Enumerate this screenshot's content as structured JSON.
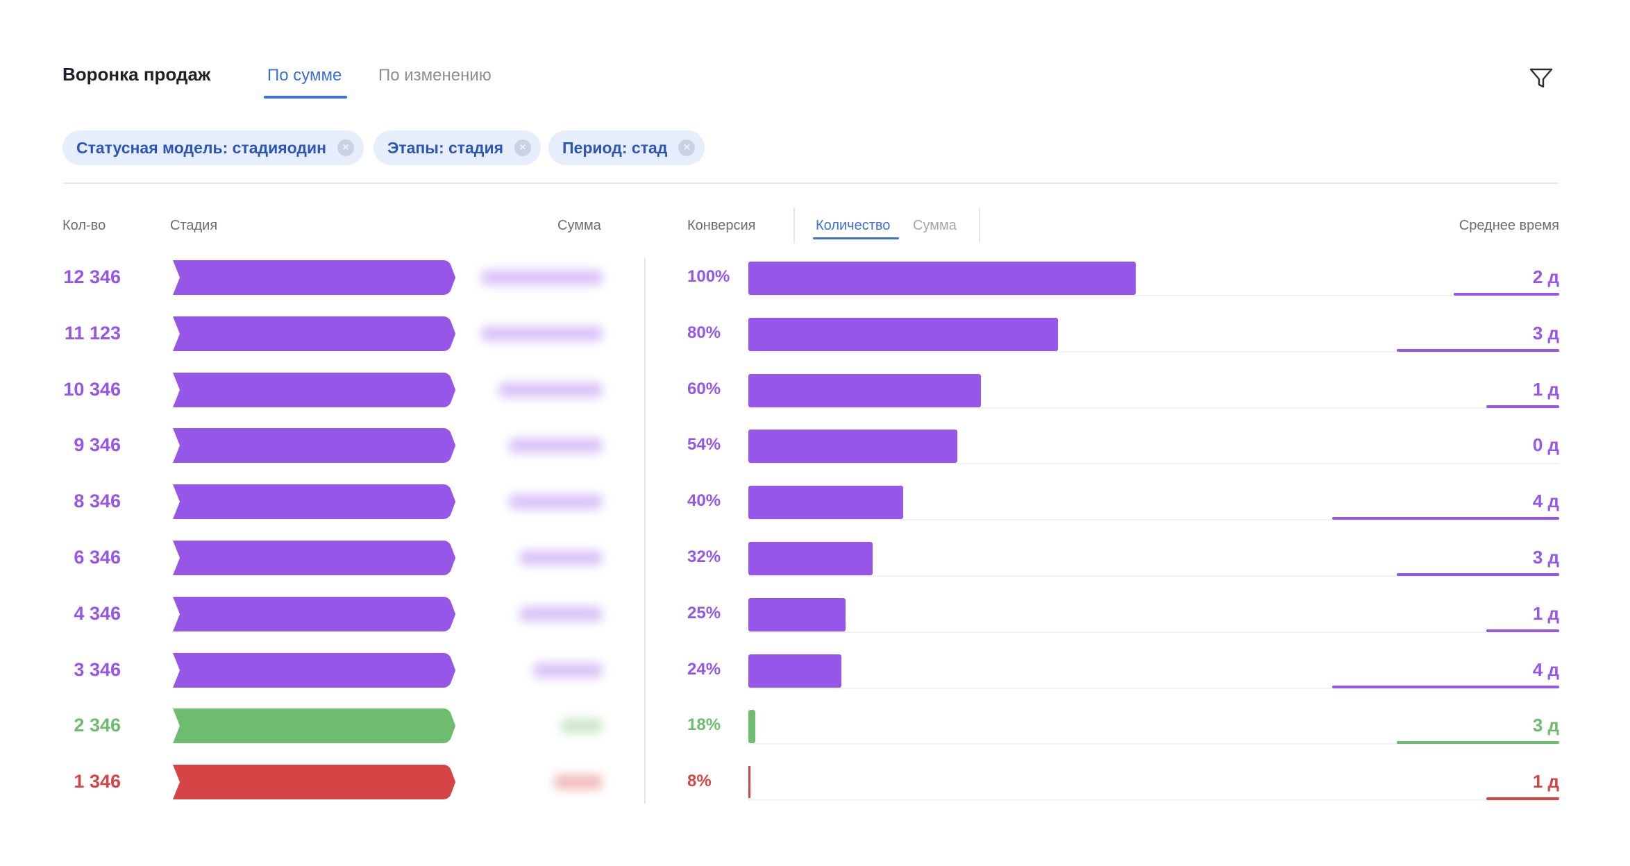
{
  "header": {
    "title": "Воронка продаж",
    "tabs": [
      {
        "label": "По сумме",
        "active": true
      },
      {
        "label": "По изменению",
        "active": false
      }
    ],
    "filter_icon": "filter-icon"
  },
  "filters": [
    {
      "label": "Статусная модель: стадияодин"
    },
    {
      "label": "Этапы: стадия"
    },
    {
      "label": "Период: стад"
    }
  ],
  "columns": {
    "count": "Кол-во",
    "stage": "Стадия",
    "sum": "Сумма",
    "conversion": "Конверсия",
    "subtabs": [
      {
        "label": "Количество",
        "active": true
      },
      {
        "label": "Сумма",
        "active": false
      }
    ],
    "avg_time": "Среднее время"
  },
  "colors": {
    "purple": "#9656e8",
    "green": "#6ebd6f",
    "red": "#d64545",
    "accent": "#3a6fd8"
  },
  "rows": [
    {
      "count": "12 346",
      "conversion": "100%",
      "conversion_value": 1.0,
      "avg_time": "2 д",
      "avg_time_level": 0.13,
      "status": "purple"
    },
    {
      "count": "11 123",
      "conversion": "80%",
      "conversion_value": 0.8,
      "avg_time": "3 д",
      "avg_time_level": 0.2,
      "status": "purple"
    },
    {
      "count": "10 346",
      "conversion": "60%",
      "conversion_value": 0.6,
      "avg_time": "1 д",
      "avg_time_level": 0.09,
      "status": "purple"
    },
    {
      "count": "9 346",
      "conversion": "54%",
      "conversion_value": 0.54,
      "avg_time": "0 д",
      "avg_time_level": 0.0,
      "status": "purple"
    },
    {
      "count": "8 346",
      "conversion": "40%",
      "conversion_value": 0.4,
      "avg_time": "4 д",
      "avg_time_level": 0.28,
      "status": "purple"
    },
    {
      "count": "6 346",
      "conversion": "32%",
      "conversion_value": 0.32,
      "avg_time": "3 д",
      "avg_time_level": 0.2,
      "status": "purple"
    },
    {
      "count": "4 346",
      "conversion": "25%",
      "conversion_value": 0.25,
      "avg_time": "1 д",
      "avg_time_level": 0.09,
      "status": "purple"
    },
    {
      "count": "3 346",
      "conversion": "24%",
      "conversion_value": 0.24,
      "avg_time": "4 д",
      "avg_time_level": 0.28,
      "status": "purple"
    },
    {
      "count": "2 346",
      "conversion": "18%",
      "conversion_value": 0.18,
      "avg_time": "3 д",
      "avg_time_level": 0.2,
      "status": "green"
    },
    {
      "count": "1 346",
      "conversion": "8%",
      "conversion_value": 0.08,
      "avg_time": "1 д",
      "avg_time_level": 0.09,
      "status": "red"
    }
  ]
}
